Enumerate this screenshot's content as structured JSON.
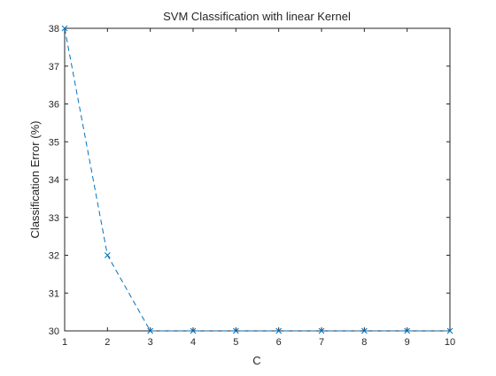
{
  "chart_data": {
    "type": "line",
    "title": "SVM Classification with linear Kernel",
    "xlabel": "C",
    "ylabel": "Classification Error (%)",
    "xlim": [
      1,
      10
    ],
    "ylim": [
      30,
      38
    ],
    "xticks": [
      "1",
      "2",
      "3",
      "4",
      "5",
      "6",
      "7",
      "8",
      "9",
      "10"
    ],
    "yticks": [
      "30",
      "31",
      "32",
      "33",
      "34",
      "35",
      "36",
      "37",
      "38"
    ],
    "grid": false,
    "series": [
      {
        "x": [
          1,
          2,
          3,
          4,
          5,
          6,
          7,
          8,
          9,
          10
        ],
        "values": [
          38,
          32,
          30,
          30,
          30,
          30,
          30,
          30,
          30,
          30
        ],
        "color": "#0072BD",
        "line_style": "dashed",
        "marker": "x"
      }
    ]
  }
}
